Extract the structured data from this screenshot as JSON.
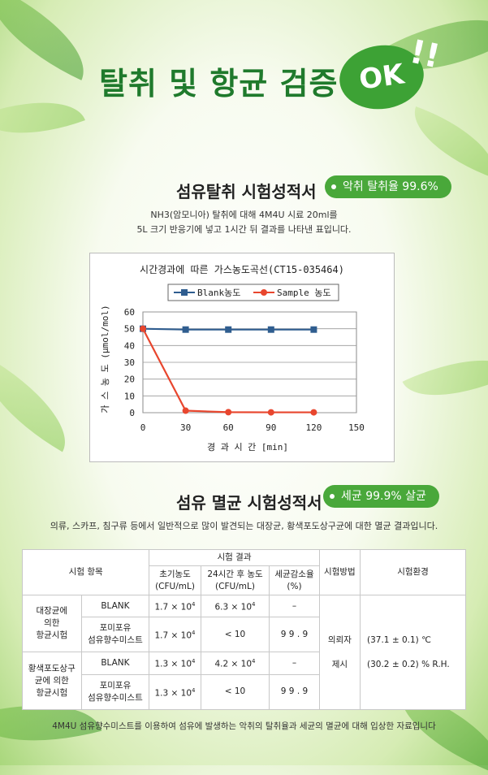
{
  "header": {
    "title": "탈취 및 항균 검증",
    "badge": "OK",
    "badge_excl": "!!"
  },
  "section1": {
    "title": "섬유탈취 시험성적서",
    "pill": "악취 탈취율 99.6%",
    "desc_line1": "NH3(암모니아) 탈취에 대해 4M4U 시료 20ml를",
    "desc_line2": "5L 크기 반응기에 넣고 1시간 뒤 결과를 나타낸 표입니다."
  },
  "chart_data": {
    "type": "line",
    "title": "시간경과에 따른 가스농도곡선(CT15-035464)",
    "xlabel": "경 과 시 간 [min]",
    "ylabel": "가 스 농 도 (µmol/mol)",
    "xlim": [
      0,
      150
    ],
    "ylim": [
      0,
      60
    ],
    "x_ticks": [
      "0",
      "30",
      "60",
      "90",
      "120",
      "150"
    ],
    "y_ticks": [
      "0",
      "10",
      "20",
      "30",
      "40",
      "50",
      "60"
    ],
    "legend": "top",
    "grid": true,
    "series": [
      {
        "name": "Blank농도",
        "color": "#2f5d8f",
        "marker": "square",
        "x": [
          0,
          30,
          60,
          90,
          120
        ],
        "values": [
          50,
          49.5,
          49.5,
          49.5,
          49.5
        ]
      },
      {
        "name": "Sample 농도",
        "color": "#e8462e",
        "marker": "circle",
        "x": [
          0,
          30,
          60,
          90,
          120
        ],
        "values": [
          50,
          1.2,
          0.3,
          0.2,
          0.2
        ]
      }
    ]
  },
  "section2": {
    "title": "섬유 멸균 시험성적서",
    "pill": "세균 99.9% 살균",
    "desc": "의류, 스카프, 침구류 등에서 일반적으로 많이 발견되는 대장균, 황색포도상구균에 대한 멸균 결과입니다."
  },
  "table": {
    "h_item": "시험 항목",
    "h_result": "시험 결과",
    "h_initial_1": "초기농도",
    "h_initial_2": "(CFU/mL)",
    "h_after_1": "24시간 후 농도",
    "h_after_2": "(CFU/mL)",
    "h_reduction_1": "세균감소율",
    "h_reduction_2": "(%)",
    "h_method": "시험방법",
    "h_env": "시험환경",
    "group1_1": "대장균에",
    "group1_2": "의한",
    "group1_3": "항균시험",
    "group2_1": "황색포도상구",
    "group2_2": "균에 의한",
    "group2_3": "항균시험",
    "blank": "BLANK",
    "sample_1": "포미포유",
    "sample_2": "섬유향수미스트",
    "r1": {
      "initial": "1.7 × 10",
      "exp": "4",
      "after": "6.3 × 10",
      "after_exp": "4",
      "reduction": "–"
    },
    "r2": {
      "initial": "1.7 × 10",
      "exp": "4",
      "after": "< 10",
      "reduction": "9 9 . 9"
    },
    "r3": {
      "initial": "1.3 × 10",
      "exp": "4",
      "after": "4.2 × 10",
      "after_exp": "4",
      "reduction": "–"
    },
    "r4": {
      "initial": "1.3 × 10",
      "exp": "4",
      "after": "< 10",
      "reduction": "9 9 . 9"
    },
    "method_1": "의뢰자",
    "method_2": "제시",
    "env_1": "(37.1 ± 0.1) ℃",
    "env_2": "(30.2 ± 0.2) % R.H."
  },
  "footnote": "4M4U 섬유향수미스트를 이용하여 섬유에 발생하는 악취의 탈취율과 세균의 멸균에 대해 입상한 자료입니다"
}
